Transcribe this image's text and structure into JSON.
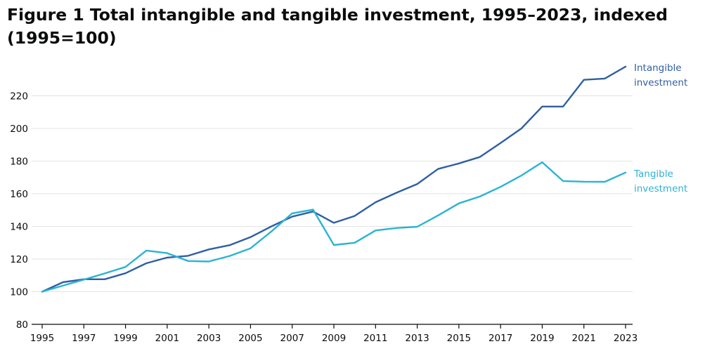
{
  "chart_data": {
    "type": "line",
    "title_line1": "Figure 1 Total intangible and tangible investment, 1995–2023, indexed",
    "title_line2": "(1995=100)",
    "xlabel": "",
    "ylabel": "",
    "ylim": [
      80,
      240
    ],
    "yticks": [
      "80",
      "100",
      "120",
      "140",
      "160",
      "180",
      "200",
      "220"
    ],
    "xticks": [
      "1995",
      "1997",
      "1999",
      "2001",
      "2003",
      "2005",
      "2007",
      "2009",
      "2011",
      "2013",
      "2015",
      "2017",
      "2019",
      "2021",
      "2023"
    ],
    "x": [
      1995,
      1996,
      1997,
      1998,
      1999,
      2000,
      2001,
      2002,
      2003,
      2004,
      2005,
      2006,
      2007,
      2008,
      2009,
      2010,
      2011,
      2012,
      2013,
      2014,
      2015,
      2016,
      2017,
      2018,
      2019,
      2020,
      2021,
      2022,
      2023
    ],
    "grid": true,
    "series": [
      {
        "name": "Intangible investment",
        "label_line1": "Intangible",
        "label_line2": "investment",
        "color": "#2e5fa3",
        "values": [
          100,
          105.8,
          107.6,
          107.6,
          111.3,
          117.4,
          120.9,
          122,
          125.9,
          128.5,
          133.4,
          140,
          146,
          149.1,
          142.2,
          146.4,
          154.8,
          160.6,
          166,
          175.2,
          178.6,
          182.5,
          191.1,
          200,
          213.4,
          213.4,
          229.8,
          230.6,
          237.9
        ]
      },
      {
        "name": "Tangible investment",
        "label_line1": "Tangible",
        "label_line2": "investment",
        "color": "#2bb3d3",
        "values": [
          100,
          103.7,
          107.4,
          111.2,
          115.2,
          125.2,
          123.6,
          118.8,
          118.5,
          121.9,
          126.6,
          136.9,
          148,
          150.3,
          128.6,
          130,
          137.5,
          139,
          139.8,
          146.7,
          154.1,
          158.3,
          164.2,
          171.2,
          179.3,
          167.8,
          167.4,
          167.3,
          173
        ]
      }
    ]
  }
}
